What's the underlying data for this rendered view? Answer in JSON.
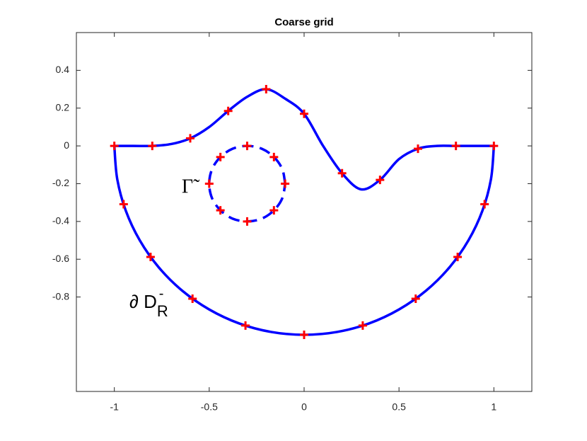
{
  "chart_data": {
    "type": "line",
    "title": "Coarse grid",
    "xlim": [
      -1.2,
      1.2
    ],
    "ylim": [
      -1.3,
      0.6
    ],
    "xticks": [
      -1,
      -0.5,
      0,
      0.5,
      1
    ],
    "yticks": [
      -0.8,
      -0.6,
      -0.4,
      -0.2,
      0,
      0.2,
      0.4
    ],
    "grid": false,
    "annotations": [
      "Γ̃",
      "∂ D",
      "R",
      "-"
    ],
    "series": [
      {
        "color": "#0000ff",
        "style": "solid",
        "marker": "none",
        "x": [
          -1,
          -0.9,
          -0.8,
          -0.7,
          -0.6,
          -0.5,
          -0.4,
          -0.3,
          -0.2,
          -0.1,
          0,
          0.1,
          0.2,
          0.3,
          0.4,
          0.5,
          0.6,
          0.7,
          0.8,
          0.9,
          1
        ],
        "values": [
          0,
          0,
          0,
          0.01,
          0.04,
          0.1,
          0.185,
          0.26,
          0.3,
          0.25,
          0.17,
          0.0,
          -0.145,
          -0.23,
          -0.18,
          -0.07,
          -0.015,
          0,
          0,
          0,
          0
        ]
      },
      {
        "color": "#0000ff",
        "style": "solid",
        "marker": "none",
        "x": [
          -1,
          -0.985,
          -0.94,
          -0.866,
          -0.766,
          -0.643,
          -0.5,
          -0.342,
          -0.174,
          0,
          0.174,
          0.342,
          0.5,
          0.643,
          0.766,
          0.866,
          0.94,
          0.985,
          1
        ],
        "values": [
          0,
          -0.174,
          -0.342,
          -0.5,
          -0.643,
          -0.766,
          -0.866,
          -0.94,
          -0.985,
          -1,
          -0.985,
          -0.94,
          -0.866,
          -0.766,
          -0.643,
          -0.5,
          -0.342,
          -0.174,
          0
        ]
      },
      {
        "color": "#0000ff",
        "style": "dashed",
        "marker": "none",
        "x": [
          -0.1,
          -0.115,
          -0.159,
          -0.223,
          -0.3,
          -0.377,
          -0.441,
          -0.485,
          -0.5,
          -0.485,
          -0.441,
          -0.377,
          -0.3,
          -0.223,
          -0.159,
          -0.115,
          -0.1
        ],
        "values": [
          -0.2,
          -0.123,
          -0.059,
          -0.015,
          0,
          -0.015,
          -0.059,
          -0.123,
          -0.2,
          -0.277,
          -0.341,
          -0.385,
          -0.4,
          -0.385,
          -0.341,
          -0.277,
          -0.2
        ]
      },
      {
        "color": "#ff0000",
        "style": "none",
        "marker": "plus",
        "x": [
          -1,
          -0.8,
          -0.6,
          -0.4,
          -0.2,
          0,
          0.2,
          0.4,
          0.6,
          0.8,
          1,
          -0.951,
          -0.809,
          -0.588,
          -0.309,
          0,
          0.309,
          0.588,
          0.809,
          0.951,
          -0.5,
          -0.441,
          -0.3,
          -0.159,
          -0.1,
          -0.159,
          -0.3,
          -0.441
        ],
        "values": [
          0,
          0,
          0.04,
          0.185,
          0.3,
          0.17,
          -0.145,
          -0.18,
          -0.015,
          0,
          0,
          -0.309,
          -0.588,
          -0.809,
          -0.951,
          -1,
          -0.951,
          -0.809,
          -0.588,
          -0.309,
          -0.2,
          -0.059,
          0,
          -0.059,
          -0.2,
          -0.341,
          -0.4,
          -0.341
        ]
      }
    ]
  }
}
